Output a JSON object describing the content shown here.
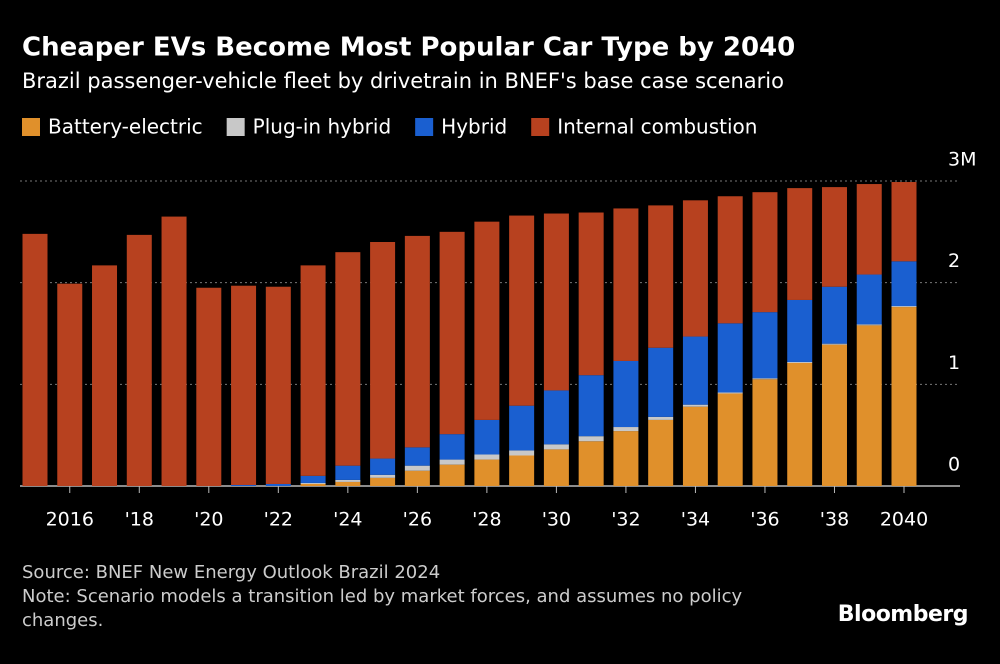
{
  "chart_data": {
    "type": "stacked-bar",
    "title": "Cheaper EVs Become Most Popular Car Type by 2040",
    "subtitle": "Brazil passenger-vehicle fleet by drivetrain in BNEF's base case scenario",
    "categories": [
      null,
      "2016",
      null,
      "'18",
      null,
      "'20",
      null,
      "'22",
      null,
      "'24",
      null,
      "'26",
      null,
      "'28",
      null,
      "'30",
      null,
      "'32",
      null,
      "'34",
      null,
      "'36",
      null,
      "'38",
      null,
      "2040"
    ],
    "series": [
      {
        "name": "Battery-electric",
        "color": "#e0902b",
        "values": [
          0,
          0,
          0,
          0,
          0,
          0,
          0,
          0,
          0.02,
          0.04,
          0.08,
          0.15,
          0.21,
          0.26,
          0.3,
          0.36,
          0.44,
          0.54,
          0.65,
          0.78,
          0.91,
          1.05,
          1.21,
          1.39,
          1.58,
          1.76
        ]
      },
      {
        "name": "Plug-in hybrid",
        "color": "#c8c8c8",
        "values": [
          0,
          0,
          0,
          0,
          0,
          0,
          0,
          0,
          0.01,
          0.02,
          0.03,
          0.05,
          0.05,
          0.05,
          0.05,
          0.05,
          0.05,
          0.04,
          0.03,
          0.02,
          0.01,
          0.01,
          0.01,
          0.01,
          0.01,
          0.01
        ]
      },
      {
        "name": "Hybrid",
        "color": "#1a5fd0",
        "values": [
          0,
          0,
          0,
          0,
          0,
          0,
          0.01,
          0.02,
          0.07,
          0.14,
          0.16,
          0.18,
          0.25,
          0.34,
          0.44,
          0.53,
          0.6,
          0.65,
          0.68,
          0.67,
          0.68,
          0.65,
          0.61,
          0.56,
          0.49,
          0.44
        ]
      },
      {
        "name": "Internal combustion",
        "color": "#b7411f",
        "values": [
          2.48,
          1.99,
          2.17,
          2.47,
          2.65,
          1.95,
          1.96,
          1.94,
          2.07,
          2.1,
          2.13,
          2.08,
          1.99,
          1.95,
          1.87,
          1.74,
          1.6,
          1.5,
          1.4,
          1.34,
          1.25,
          1.18,
          1.1,
          0.98,
          0.89,
          0.78
        ]
      }
    ],
    "ylim": [
      0,
      3
    ],
    "yticks": [
      0,
      1,
      2,
      {
        "value": 3,
        "label": "3M"
      }
    ],
    "grid": true,
    "source": "Source: BNEF New Energy Outlook Brazil 2024",
    "note": "Note: Scenario models a transition led by market forces, and assumes no policy changes.",
    "brand": "Bloomberg"
  }
}
